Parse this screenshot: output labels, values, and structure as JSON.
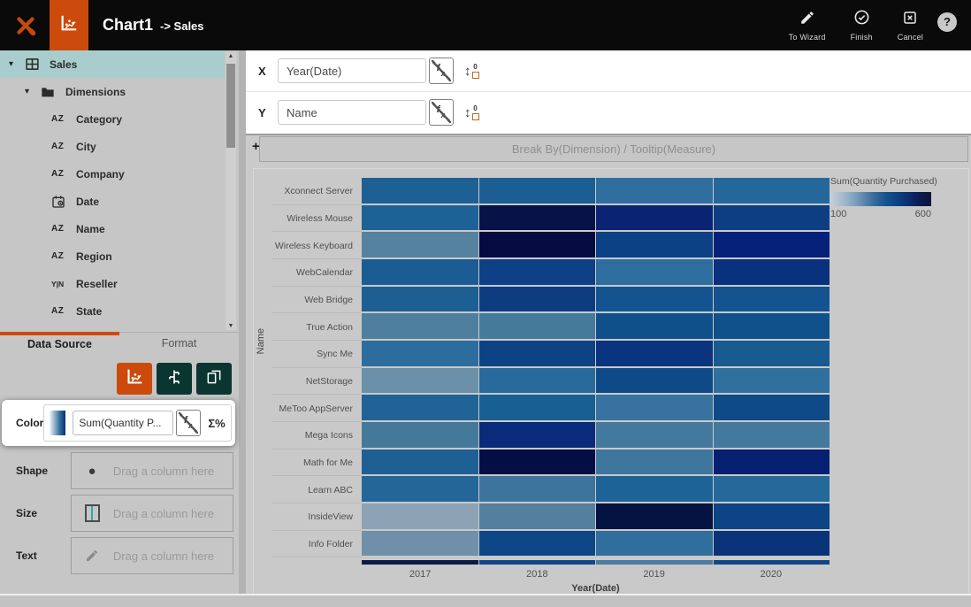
{
  "colors": {
    "accent": "#cc4a0b",
    "header_bg": "#0a0a0a",
    "selected_teal": "#a9cdcc",
    "teal_button": "#0b3531"
  },
  "header": {
    "title": "Chart1",
    "subtitle": "-> Sales",
    "actions": [
      {
        "label": "To Wizard",
        "icon": "pencil-icon",
        "name": "to-wizard-button"
      },
      {
        "label": "Finish",
        "icon": "check-circle-icon",
        "name": "finish-button"
      },
      {
        "label": "Cancel",
        "icon": "cancel-icon",
        "name": "cancel-button"
      }
    ],
    "help": "?"
  },
  "sidebar": {
    "tree": [
      {
        "label": "Sales",
        "icon": "table-icon",
        "level": 0,
        "selected": true,
        "expandable": true
      },
      {
        "label": "Dimensions",
        "icon": "folder-icon",
        "level": 1,
        "selected": false,
        "expandable": true
      },
      {
        "label": "Category",
        "icon": "az-icon",
        "level": 2
      },
      {
        "label": "City",
        "icon": "az-icon",
        "level": 2
      },
      {
        "label": "Company",
        "icon": "az-icon",
        "level": 2
      },
      {
        "label": "Date",
        "icon": "calendar-icon",
        "level": 2
      },
      {
        "label": "Name",
        "icon": "az-icon",
        "level": 2
      },
      {
        "label": "Region",
        "icon": "az-icon",
        "level": 2
      },
      {
        "label": "Reseller",
        "icon": "yn-icon",
        "level": 2
      },
      {
        "label": "State",
        "icon": "az-icon",
        "level": 2
      }
    ],
    "tabs": [
      {
        "label": "Data Source",
        "active": true
      },
      {
        "label": "Format",
        "active": false
      }
    ],
    "chart_type_buttons": [
      {
        "icon": "chart-scatter-icon",
        "name": "chart-type-chart",
        "active": true
      },
      {
        "icon": "fields-icon",
        "name": "chart-type-fields",
        "active": false
      },
      {
        "icon": "pages-icon",
        "name": "chart-type-pages",
        "active": false
      }
    ],
    "color_well": {
      "label": "Color",
      "value": "Sum(Quantity P...",
      "sigma": "Σ%"
    },
    "drop_zones": [
      {
        "label": "Shape",
        "icon": "circle-icon",
        "placeholder": "Drag a column here"
      },
      {
        "label": "Size",
        "icon": "size-icon",
        "placeholder": "Drag a column here"
      },
      {
        "label": "Text",
        "icon": "pencil-gray-icon",
        "placeholder": "Drag a column here"
      }
    ]
  },
  "builder": {
    "x_label": "X",
    "x_value": "Year(Date)",
    "y_label": "Y",
    "y_value": "Name",
    "plus": "+",
    "breakby": "Break By(Dimension) / Tooltip(Measure)"
  },
  "chart_data": {
    "type": "heatmap",
    "x": [
      "2017",
      "2018",
      "2019",
      "2020"
    ],
    "xlabel": "Year(Date)",
    "ylabel": "Name",
    "legend": {
      "title": "Sum(Quantity Purchased)",
      "min": "100",
      "max": "600",
      "gradient": [
        "#c9cfd8",
        "#a9bccd",
        "#85a5c0",
        "#5d87ac",
        "#34699a",
        "#15528c",
        "#0c4083",
        "#0a2d6e",
        "#0a1c50",
        "#0b1638"
      ]
    },
    "rows": [
      {
        "name": "Xconnect Server",
        "colors": [
          "#1d6094",
          "#1a5e94",
          "#2f6fa0",
          "#24689b"
        ],
        "values": [
          340,
          350,
          295,
          325
        ]
      },
      {
        "name": "Wireless Mouse",
        "colors": [
          "#1e6295",
          "#071246",
          "#0a2473",
          "#0d3e82"
        ],
        "values": [
          335,
          595,
          550,
          480
        ]
      },
      {
        "name": "Wireless Keyboard",
        "colors": [
          "#54829f",
          "#040b41",
          "#0c4185",
          "#05217a"
        ],
        "values": [
          230,
          600,
          465,
          555
        ]
      },
      {
        "name": "WebCalendar",
        "colors": [
          "#1b5d93",
          "#0d4086",
          "#2d6e9e",
          "#09317e"
        ],
        "values": [
          345,
          470,
          300,
          525
        ]
      },
      {
        "name": "Web Bridge",
        "colors": [
          "#1d5f93",
          "#0d3c81",
          "#135490",
          "#135490"
        ],
        "values": [
          340,
          490,
          425,
          425
        ]
      },
      {
        "name": "True Action",
        "colors": [
          "#4f7f9e",
          "#457a9b",
          "#0f508b",
          "#10518c"
        ],
        "values": [
          240,
          255,
          440,
          435
        ]
      },
      {
        "name": "Sync Me",
        "colors": [
          "#2d6d9d",
          "#0d4285",
          "#0a347e",
          "#185b91"
        ],
        "values": [
          300,
          460,
          515,
          365
        ]
      },
      {
        "name": "NetStorage",
        "colors": [
          "#6b90aa",
          "#276a9b",
          "#0e4a88",
          "#30709f"
        ],
        "values": [
          185,
          310,
          450,
          290
        ]
      },
      {
        "name": "MeToo AppServer",
        "colors": [
          "#206396",
          "#185f94",
          "#38739f",
          "#0e4a88"
        ],
        "values": [
          330,
          345,
          275,
          450
        ]
      },
      {
        "name": "Mega Icons",
        "colors": [
          "#45799a",
          "#0a2b79",
          "#43799d",
          "#43799d"
        ],
        "values": [
          250,
          530,
          250,
          250
        ]
      },
      {
        "name": "Math for Me",
        "colors": [
          "#1e6094",
          "#040e44",
          "#3f769d",
          "#052071"
        ],
        "values": [
          340,
          598,
          260,
          560
        ]
      },
      {
        "name": "Learn ABC",
        "colors": [
          "#246698",
          "#3d749e",
          "#1e6397",
          "#25689a"
        ],
        "values": [
          320,
          280,
          335,
          315
        ]
      },
      {
        "name": "InsideView",
        "colors": [
          "#8da3b5",
          "#557f9f",
          "#041341",
          "#0d4485"
        ],
        "values": [
          145,
          225,
          600,
          455
        ]
      },
      {
        "name": "Info Folder",
        "colors": [
          "#6f90a8",
          "#0d4686",
          "#2f6e9d",
          "#0a3379"
        ],
        "values": [
          180,
          455,
          295,
          520
        ]
      }
    ],
    "partial_row": {
      "colors": [
        "#0a1a4a",
        "#0e4888",
        "#4a7da1",
        "#0e4888"
      ]
    }
  }
}
